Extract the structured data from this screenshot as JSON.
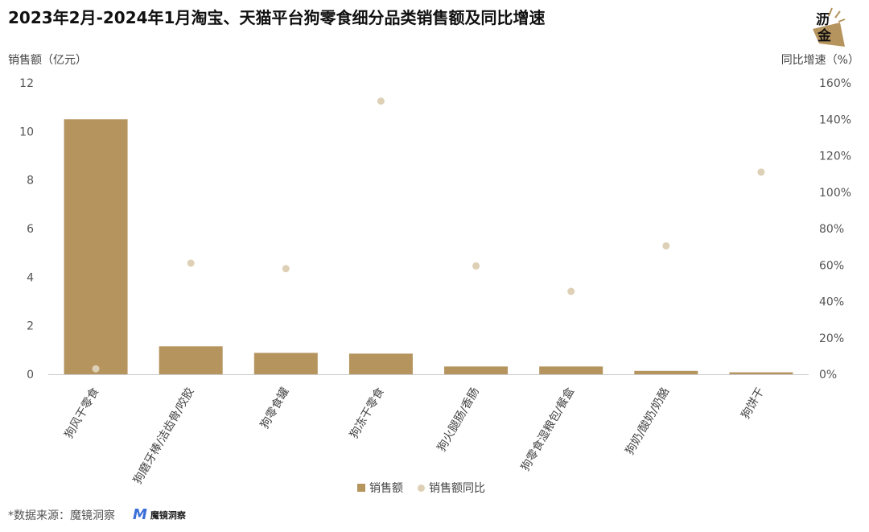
{
  "title": "2023年2月-2024年1月淘宝、天猫平台狗零食细分品类销售额及同比增速",
  "logo": {
    "line1": "沥",
    "line2": "金"
  },
  "footer": {
    "source": "*数据来源：魔镜洞察",
    "brand": "魔镜洞察"
  },
  "chart_data": {
    "type": "bar",
    "title": "2023年2月-2024年1月淘宝、天猫平台狗零食细分品类销售额及同比增速",
    "categories": [
      "狗风干零食",
      "狗磨牙棒/洁齿骨/咬胶",
      "狗零食罐",
      "狗冻干零食",
      "狗火腿肠/香肠",
      "狗零食湿粮包/餐盒",
      "狗奶/酸奶/奶酪",
      "狗饼干"
    ],
    "series": [
      {
        "name": "销售额",
        "type": "bar",
        "axis": "left",
        "color": "#b5945e",
        "values": [
          10.5,
          1.15,
          0.88,
          0.85,
          0.32,
          0.32,
          0.14,
          0.08
        ]
      },
      {
        "name": "销售额同比",
        "type": "scatter",
        "axis": "right",
        "color": "#ded0b6",
        "values": [
          3,
          61,
          58,
          150,
          59.5,
          45.5,
          70.5,
          111
        ]
      }
    ],
    "ylabel": "销售额（亿元）",
    "y2label": "同比增速（%）",
    "ylim": [
      0,
      12
    ],
    "y2lim": [
      0,
      160
    ],
    "yticks": [
      "0",
      "2",
      "4",
      "6",
      "8",
      "10",
      "12"
    ],
    "y2ticks": [
      "0%",
      "20%",
      "40%",
      "60%",
      "80%",
      "100%",
      "120%",
      "140%",
      "160%"
    ],
    "grid": false,
    "legend": "bottom"
  }
}
